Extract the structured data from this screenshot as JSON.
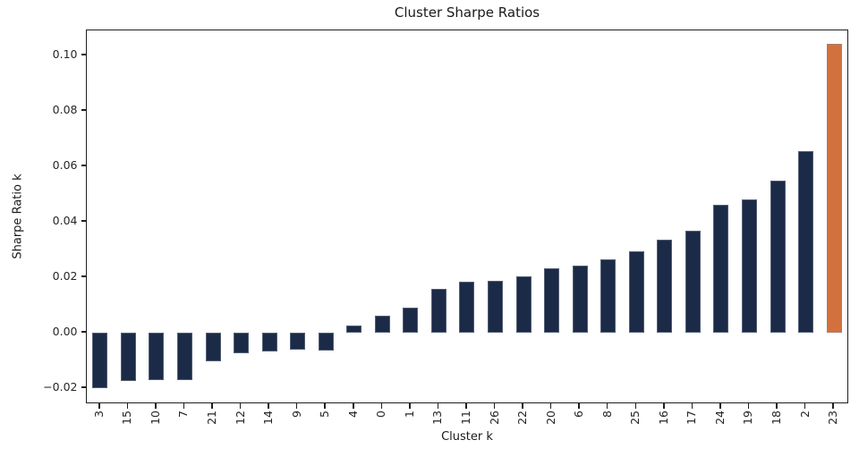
{
  "chart_data": {
    "type": "bar",
    "title": "Cluster Sharpe Ratios",
    "xlabel": "Cluster k",
    "ylabel": "Sharpe Ratio k",
    "categories": [
      "3",
      "15",
      "10",
      "7",
      "21",
      "12",
      "14",
      "9",
      "5",
      "4",
      "0",
      "1",
      "13",
      "11",
      "26",
      "22",
      "20",
      "6",
      "8",
      "25",
      "16",
      "17",
      "24",
      "19",
      "18",
      "2",
      "23"
    ],
    "values": [
      -0.0199,
      -0.0173,
      -0.0172,
      -0.0171,
      -0.0102,
      -0.0075,
      -0.0066,
      -0.0061,
      -0.0063,
      0.0025,
      0.006,
      0.0091,
      0.0159,
      0.0183,
      0.0187,
      0.0203,
      0.0233,
      0.0242,
      0.0264,
      0.0294,
      0.0337,
      0.0369,
      0.046,
      0.048,
      0.0549,
      0.0656,
      0.1041
    ],
    "bar_color": "#1b2a47",
    "highlight_color": "#d2713e",
    "highlight_category": "23",
    "ytick_values": [
      0.1,
      0.08,
      0.06,
      0.04,
      0.02,
      0.0,
      -0.02
    ],
    "ytick_labels": [
      "0.10",
      "0.08",
      "0.06",
      "0.04",
      "0.02",
      "0.00",
      "−0.02"
    ],
    "ylim": [
      -0.0258,
      0.109
    ],
    "grid": false,
    "legend": null,
    "xtick_rotation_deg": 90
  }
}
